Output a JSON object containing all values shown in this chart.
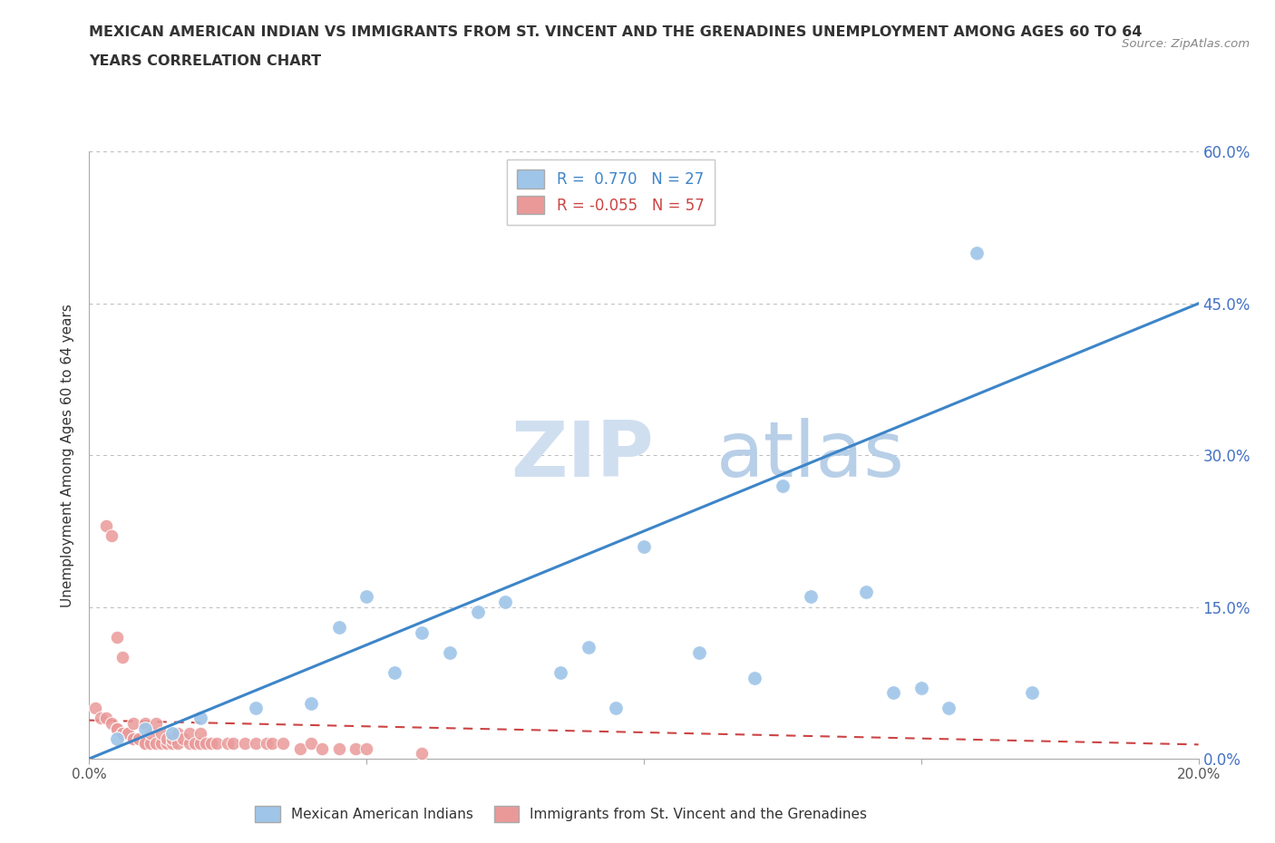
{
  "title_line1": "MEXICAN AMERICAN INDIAN VS IMMIGRANTS FROM ST. VINCENT AND THE GRENADINES UNEMPLOYMENT AMONG AGES 60 TO 64",
  "title_line2": "YEARS CORRELATION CHART",
  "source": "Source: ZipAtlas.com",
  "ylabel": "Unemployment Among Ages 60 to 64 years",
  "xlim": [
    0.0,
    0.2
  ],
  "ylim": [
    0.0,
    0.6
  ],
  "xticks": [
    0.0,
    0.05,
    0.1,
    0.15,
    0.2
  ],
  "xticklabels": [
    "0.0%",
    "",
    "",
    "",
    "20.0%"
  ],
  "yticks": [
    0.0,
    0.15,
    0.3,
    0.45,
    0.6
  ],
  "yticklabels_right": [
    "0.0%",
    "15.0%",
    "30.0%",
    "45.0%",
    "60.0%"
  ],
  "blue_R": 0.77,
  "blue_N": 27,
  "pink_R": -0.055,
  "pink_N": 57,
  "blue_color": "#9fc5e8",
  "pink_color": "#ea9999",
  "blue_line_color": "#3d85c8",
  "pink_line_color": "#cc4444",
  "blue_line_slope": 2.25,
  "blue_line_intercept": 0.0,
  "pink_line_slope": -0.12,
  "pink_line_intercept": 0.038,
  "blue_scatter_x": [
    0.005,
    0.01,
    0.015,
    0.02,
    0.03,
    0.04,
    0.045,
    0.05,
    0.055,
    0.06,
    0.065,
    0.07,
    0.075,
    0.085,
    0.09,
    0.095,
    0.1,
    0.11,
    0.12,
    0.125,
    0.13,
    0.14,
    0.145,
    0.15,
    0.155,
    0.16,
    0.17
  ],
  "blue_scatter_y": [
    0.02,
    0.03,
    0.025,
    0.04,
    0.05,
    0.055,
    0.13,
    0.16,
    0.085,
    0.125,
    0.105,
    0.145,
    0.155,
    0.085,
    0.11,
    0.05,
    0.21,
    0.105,
    0.08,
    0.27,
    0.16,
    0.165,
    0.065,
    0.07,
    0.05,
    0.5,
    0.065
  ],
  "pink_scatter_x": [
    0.001,
    0.002,
    0.003,
    0.003,
    0.004,
    0.004,
    0.005,
    0.005,
    0.005,
    0.006,
    0.006,
    0.006,
    0.007,
    0.007,
    0.008,
    0.008,
    0.008,
    0.009,
    0.009,
    0.01,
    0.01,
    0.01,
    0.011,
    0.011,
    0.012,
    0.012,
    0.013,
    0.013,
    0.014,
    0.014,
    0.015,
    0.015,
    0.016,
    0.016,
    0.017,
    0.018,
    0.018,
    0.019,
    0.02,
    0.02,
    0.021,
    0.022,
    0.023,
    0.025,
    0.026,
    0.028,
    0.03,
    0.032,
    0.033,
    0.035,
    0.038,
    0.04,
    0.042,
    0.045,
    0.048,
    0.05,
    0.06
  ],
  "pink_scatter_y": [
    0.05,
    0.04,
    0.04,
    0.23,
    0.035,
    0.22,
    0.03,
    0.03,
    0.12,
    0.025,
    0.025,
    0.1,
    0.025,
    0.025,
    0.02,
    0.02,
    0.035,
    0.02,
    0.02,
    0.015,
    0.015,
    0.035,
    0.015,
    0.025,
    0.015,
    0.035,
    0.015,
    0.025,
    0.015,
    0.02,
    0.015,
    0.02,
    0.015,
    0.025,
    0.02,
    0.015,
    0.025,
    0.015,
    0.015,
    0.025,
    0.015,
    0.015,
    0.015,
    0.015,
    0.015,
    0.015,
    0.015,
    0.015,
    0.015,
    0.015,
    0.01,
    0.015,
    0.01,
    0.01,
    0.01,
    0.01,
    0.005
  ],
  "background_color": "#ffffff",
  "grid_color": "#bbbbbb",
  "watermark_zip_color": "#d0dff0",
  "watermark_atlas_color": "#b8cfe8",
  "legend_label_blue": "Mexican American Indians",
  "legend_label_pink": "Immigrants from St. Vincent and the Grenadines"
}
